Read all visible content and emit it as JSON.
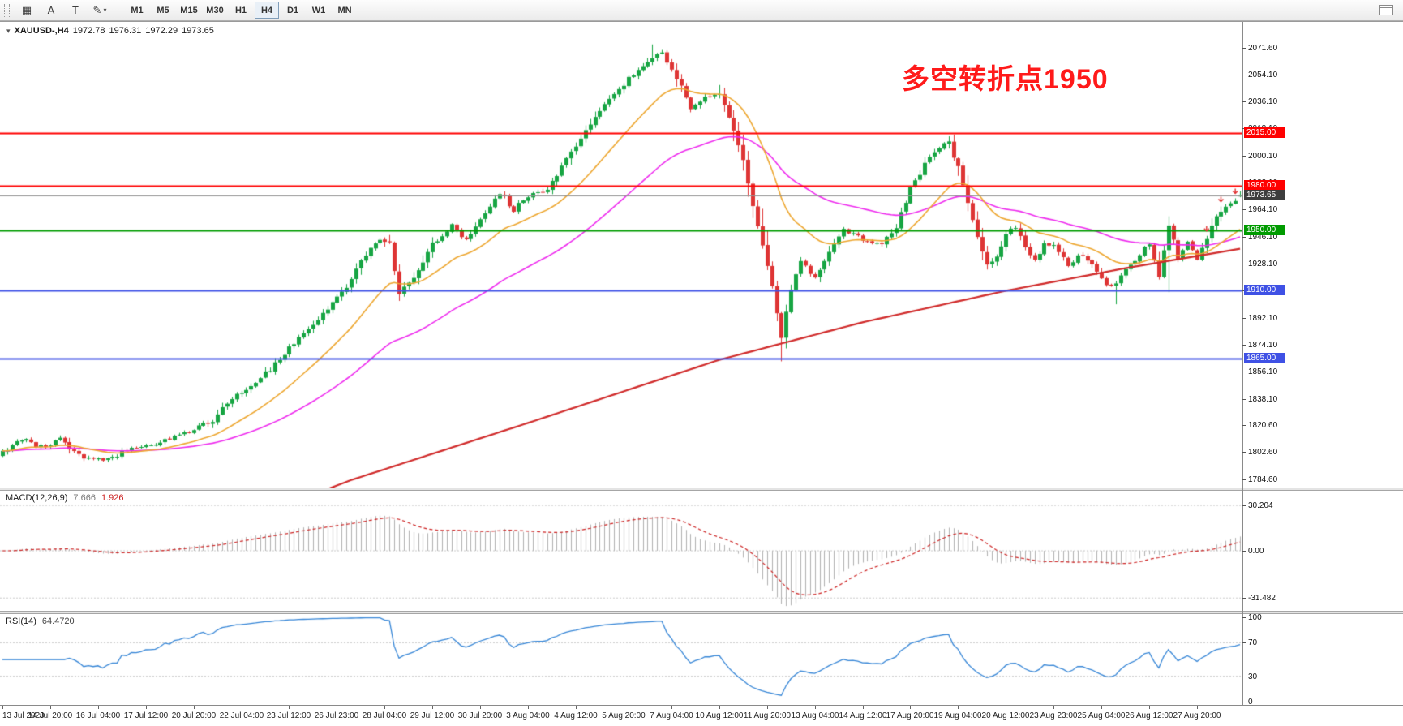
{
  "toolbar": {
    "icons": [
      {
        "name": "tile-windows-icon",
        "glyph": "▦"
      },
      {
        "name": "text-label-icon",
        "glyph": "A"
      },
      {
        "name": "text-tool-icon",
        "glyph": "T"
      },
      {
        "name": "draw-tools-icon",
        "glyph": "✎",
        "caret": "▾"
      }
    ],
    "timeframes": [
      "M1",
      "M5",
      "M15",
      "M30",
      "H1",
      "H4",
      "D1",
      "W1",
      "MN"
    ],
    "active_timeframe": "H4"
  },
  "chart": {
    "title": {
      "symbol": "XAUUSD-,H4",
      "open": "1972.78",
      "high": "1976.31",
      "low": "1972.29",
      "close": "1973.65"
    },
    "annotation": {
      "text": "多空转折点1950",
      "color": "#ff1a1a"
    },
    "price_axis": {
      "labels": [
        "2071.60",
        "2054.10",
        "2036.10",
        "2018.10",
        "2000.10",
        "1982.10",
        "1964.10",
        "1946.10",
        "1928.10",
        "1910.10",
        "1892.10",
        "1874.10",
        "1856.10",
        "1838.10",
        "1820.60",
        "1802.60",
        "1784.60"
      ]
    },
    "levels": [
      {
        "value": 2015.0,
        "label": "2015.00",
        "color": "#ff0000"
      },
      {
        "value": 1980.0,
        "label": "1980.00",
        "color": "#ff0000"
      },
      {
        "value": 1950.0,
        "label": "1950.00",
        "color": "#009b00"
      },
      {
        "value": 1910.0,
        "label": "1910.00",
        "color": "#3f51e5"
      },
      {
        "value": 1865.0,
        "label": "1865.00",
        "color": "#3f51e5"
      }
    ],
    "current_price": {
      "value": 1973.65,
      "label": "1973.65",
      "line_color": "#909090",
      "box_color": "#3d3d3d"
    },
    "colors": {
      "candle_up": "#17a543",
      "candle_down": "#de3535",
      "ma_fast": "#eda62f",
      "ma_slow": "#ee2aee",
      "ma_long": "#d02a2a",
      "arrow": "#e03030"
    }
  },
  "chart_data": {
    "type": "candlestick",
    "symbol": "XAUUSD",
    "timeframe": "H4",
    "bars": 260,
    "y_range": [
      1779,
      2089
    ],
    "last_bar": {
      "open": 1972.78,
      "high": 1976.31,
      "low": 1972.29,
      "close": 1973.65
    },
    "price_path": [
      [
        0,
        1802
      ],
      [
        4,
        1812
      ],
      [
        8,
        1806
      ],
      [
        12,
        1811
      ],
      [
        16,
        1800
      ],
      [
        20,
        1797
      ],
      [
        24,
        1801
      ],
      [
        28,
        1806
      ],
      [
        32,
        1809
      ],
      [
        36,
        1813
      ],
      [
        40,
        1817
      ],
      [
        44,
        1824
      ],
      [
        48,
        1839
      ],
      [
        52,
        1846
      ],
      [
        56,
        1858
      ],
      [
        60,
        1872
      ],
      [
        64,
        1885
      ],
      [
        68,
        1898
      ],
      [
        72,
        1913
      ],
      [
        76,
        1935
      ],
      [
        79,
        1945
      ],
      [
        81,
        1941
      ],
      [
        83,
        1908
      ],
      [
        86,
        1918
      ],
      [
        90,
        1941
      ],
      [
        94,
        1953
      ],
      [
        97,
        1944
      ],
      [
        100,
        1958
      ],
      [
        104,
        1975
      ],
      [
        107,
        1964
      ],
      [
        110,
        1973
      ],
      [
        114,
        1977
      ],
      [
        118,
        1997
      ],
      [
        122,
        2018
      ],
      [
        126,
        2034
      ],
      [
        130,
        2048
      ],
      [
        134,
        2060
      ],
      [
        138,
        2068
      ],
      [
        141,
        2052
      ],
      [
        144,
        2032
      ],
      [
        147,
        2038
      ],
      [
        150,
        2042
      ],
      [
        152,
        2025
      ],
      [
        155,
        1997
      ],
      [
        157,
        1966
      ],
      [
        159,
        1940
      ],
      [
        161,
        1914
      ],
      [
        163,
        1878
      ],
      [
        165,
        1912
      ],
      [
        167,
        1929
      ],
      [
        170,
        1919
      ],
      [
        173,
        1937
      ],
      [
        176,
        1951
      ],
      [
        180,
        1944
      ],
      [
        184,
        1941
      ],
      [
        187,
        1953
      ],
      [
        190,
        1978
      ],
      [
        193,
        1994
      ],
      [
        196,
        2006
      ],
      [
        198,
        2008
      ],
      [
        200,
        1992
      ],
      [
        202,
        1967
      ],
      [
        204,
        1945
      ],
      [
        206,
        1927
      ],
      [
        208,
        1932
      ],
      [
        210,
        1947
      ],
      [
        212,
        1953
      ],
      [
        214,
        1939
      ],
      [
        216,
        1931
      ],
      [
        218,
        1941
      ],
      [
        220,
        1939
      ],
      [
        223,
        1928
      ],
      [
        226,
        1934
      ],
      [
        229,
        1922
      ],
      [
        232,
        1912
      ],
      [
        234,
        1920
      ],
      [
        237,
        1930
      ],
      [
        240,
        1942
      ],
      [
        242,
        1918
      ],
      [
        244,
        1955
      ],
      [
        246,
        1932
      ],
      [
        248,
        1942
      ],
      [
        250,
        1931
      ],
      [
        252,
        1945
      ],
      [
        254,
        1959
      ],
      [
        256,
        1966
      ],
      [
        258,
        1971
      ],
      [
        259,
        1973.65
      ]
    ],
    "vol_boosts": [
      [
        79,
        84,
        2.5
      ],
      [
        131,
        139,
        2
      ],
      [
        158,
        167,
        4
      ],
      [
        200,
        207,
        2
      ],
      [
        242,
        246,
        5
      ]
    ],
    "wick_overrides": [
      [
        136,
        "high",
        2074
      ],
      [
        150,
        "high",
        2047
      ],
      [
        163,
        "low",
        1863
      ],
      [
        233,
        "low",
        1901
      ],
      [
        244,
        "low",
        1909
      ]
    ],
    "trade_arrows": [
      252,
      255,
      258
    ],
    "ma_fast_period": 20,
    "ma_slow_period": 55,
    "red_ma_path": [
      [
        0,
        1700
      ],
      [
        40,
        1744
      ],
      [
        73,
        1784
      ],
      [
        110,
        1822
      ],
      [
        150,
        1864
      ],
      [
        180,
        1889
      ],
      [
        210,
        1910
      ],
      [
        235,
        1925
      ],
      [
        259,
        1938
      ]
    ]
  },
  "macd": {
    "label": "MACD(12,26,9)",
    "value": "7.666",
    "signal_value": "1.926",
    "range": 40,
    "axis": [
      {
        "label": "30.204",
        "value": 30.204
      },
      {
        "label": "0.00",
        "value": 0
      },
      {
        "label": "-31.482",
        "value": -31.482
      }
    ]
  },
  "rsi": {
    "label": "RSI(14)",
    "value": "64.4720",
    "levels": [
      70,
      30
    ],
    "axis": [
      {
        "label": "100",
        "value": 100
      },
      {
        "label": "70",
        "value": 70
      },
      {
        "label": "30",
        "value": 30
      },
      {
        "label": "0",
        "value": 0
      }
    ]
  },
  "time_axis": {
    "bars_per_label": 10,
    "labels": [
      "13 Jul 2020",
      "14 Jul 20:00",
      "16 Jul 04:00",
      "17 Jul 12:00",
      "20 Jul 20:00",
      "22 Jul 04:00",
      "23 Jul 12:00",
      "26 Jul 23:00",
      "28 Jul 04:00",
      "29 Jul 12:00",
      "30 Jul 20:00",
      "3 Aug 04:00",
      "4 Aug 12:00",
      "5 Aug 20:00",
      "7 Aug 04:00",
      "10 Aug 12:00",
      "11 Aug 20:00",
      "13 Aug 04:00",
      "14 Aug 12:00",
      "17 Aug 20:00",
      "19 Aug 04:00",
      "20 Aug 12:00",
      "23 Aug 23:00",
      "25 Aug 04:00",
      "26 Aug 12:00",
      "27 Aug 20:00"
    ]
  }
}
